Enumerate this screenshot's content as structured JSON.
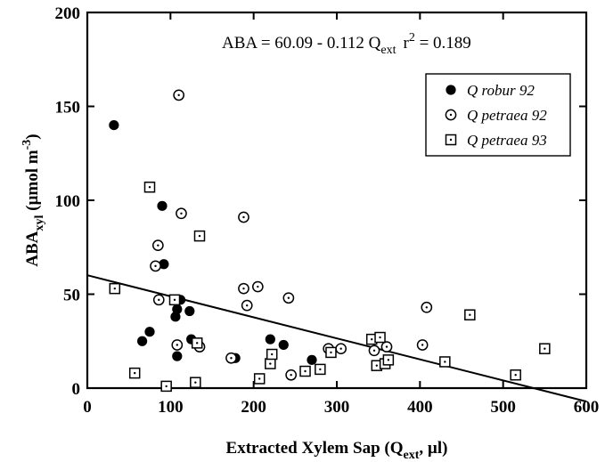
{
  "chart_data": {
    "type": "scatter",
    "title": "",
    "xlabel_main": "Extracted Xylem Sap (Q",
    "xlabel_sub": "ext",
    "xlabel_tail": ", µl)",
    "ylabel_main": "ABA",
    "ylabel_sub": "xyl",
    "ylabel_tail": " (µmol m",
    "ylabel_sup": "-3",
    "ylabel_close": ")",
    "xlim": [
      0,
      600
    ],
    "ylim": [
      0,
      200
    ],
    "xticks": [
      0,
      100,
      200,
      300,
      400,
      500,
      600
    ],
    "yticks": [
      0,
      50,
      100,
      150,
      200
    ],
    "xtick_labels": [
      "0",
      "100",
      "200",
      "300",
      "400",
      "500",
      "600"
    ],
    "ytick_labels": [
      "0",
      "50",
      "100",
      "150",
      "200"
    ],
    "grid": false,
    "legend_position": "top-right",
    "annotation": {
      "eq_main": "ABA = 60.09 - 0.112 Q",
      "eq_sub": "ext",
      "r_main": "r",
      "r_sup": "2",
      "r_tail": " = 0.189"
    },
    "regression": {
      "intercept": 60.09,
      "slope": -0.112
    },
    "series": [
      {
        "name": "Q robur 92",
        "marker": "filled-circle",
        "points": [
          [
            32,
            140
          ],
          [
            90,
            97
          ],
          [
            92,
            66
          ],
          [
            108,
            42
          ],
          [
            106,
            38
          ],
          [
            112,
            47
          ],
          [
            123,
            41
          ],
          [
            125,
            26
          ],
          [
            75,
            30
          ],
          [
            66,
            25
          ],
          [
            108,
            17
          ],
          [
            178,
            16
          ],
          [
            220,
            26
          ],
          [
            236,
            23
          ],
          [
            270,
            15
          ]
        ]
      },
      {
        "name": "Q petraea 92",
        "marker": "open-circle",
        "points": [
          [
            110,
            156
          ],
          [
            82,
            65
          ],
          [
            85,
            76
          ],
          [
            86,
            47
          ],
          [
            113,
            93
          ],
          [
            108,
            23
          ],
          [
            135,
            22
          ],
          [
            173,
            16
          ],
          [
            188,
            91
          ],
          [
            188,
            53
          ],
          [
            192,
            44
          ],
          [
            205,
            54
          ],
          [
            242,
            48
          ],
          [
            245,
            7
          ],
          [
            290,
            21
          ],
          [
            305,
            21
          ],
          [
            345,
            20
          ],
          [
            360,
            22
          ],
          [
            403,
            23
          ],
          [
            408,
            43
          ]
        ]
      },
      {
        "name": "Q petraea 93",
        "marker": "open-square",
        "points": [
          [
            75,
            107
          ],
          [
            33,
            53
          ],
          [
            57,
            8
          ],
          [
            95,
            1
          ],
          [
            105,
            47
          ],
          [
            130,
            3
          ],
          [
            132,
            24
          ],
          [
            135,
            81
          ],
          [
            207,
            5
          ],
          [
            220,
            13
          ],
          [
            222,
            18
          ],
          [
            262,
            9
          ],
          [
            280,
            10
          ],
          [
            293,
            19
          ],
          [
            342,
            26
          ],
          [
            348,
            12
          ],
          [
            352,
            27
          ],
          [
            358,
            13
          ],
          [
            362,
            15
          ],
          [
            430,
            14
          ],
          [
            460,
            39
          ],
          [
            515,
            7
          ],
          [
            550,
            21
          ]
        ]
      }
    ]
  }
}
